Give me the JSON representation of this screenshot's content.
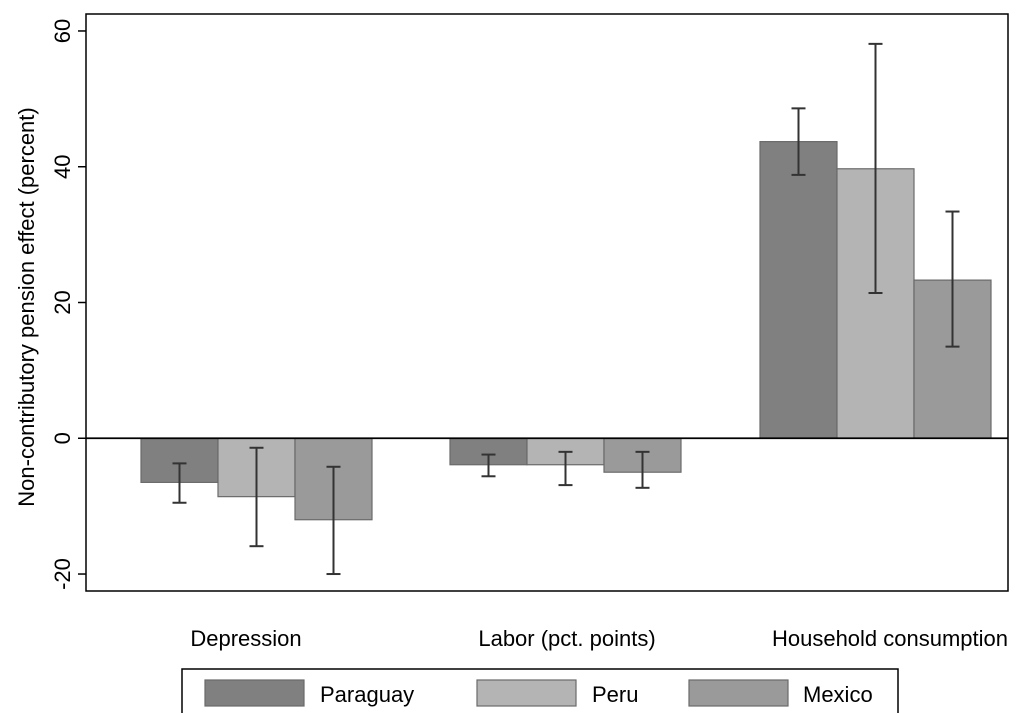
{
  "chart_data": {
    "type": "bar",
    "title": "",
    "xlabel": "",
    "ylabel": "Non-contributory pension effect (percent)",
    "ylim": [
      -22.5,
      62.5
    ],
    "yticks": [
      -20,
      0,
      20,
      40,
      60
    ],
    "ytick_labels": [
      "-20",
      "0",
      "20",
      "40",
      "60"
    ],
    "grid": false,
    "zero_line": true,
    "legend_position": "bottom",
    "categories": [
      "Depression",
      "Labor (pct. points)",
      "Household consumption"
    ],
    "series": [
      {
        "name": "Paraguay",
        "color": "#808080",
        "values": [
          -6.5,
          -3.9,
          43.7
        ],
        "ci_low": [
          -9.5,
          -5.6,
          38.8
        ],
        "ci_high": [
          -3.7,
          -2.4,
          48.6
        ]
      },
      {
        "name": "Peru",
        "color": "#b4b4b4",
        "values": [
          -8.6,
          -3.9,
          39.7
        ],
        "ci_low": [
          -15.9,
          -6.9,
          21.4
        ],
        "ci_high": [
          -1.4,
          -2.0,
          58.1
        ]
      },
      {
        "name": "Mexico",
        "color": "#9a9a9a",
        "values": [
          -12.0,
          -5.0,
          23.3
        ],
        "ci_low": [
          -20.0,
          -7.3,
          13.5
        ],
        "ci_high": [
          -4.2,
          -2.0,
          33.4
        ]
      }
    ]
  }
}
